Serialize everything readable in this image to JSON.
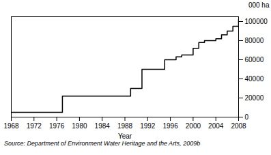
{
  "chart_data": {
    "type": "step",
    "xlabel": "Year",
    "ylabel": "000 ha",
    "caption": "Source: Department of Environment Water Heritage and the Arts,  2009b",
    "x": [
      1968,
      1969,
      1970,
      1971,
      1972,
      1973,
      1974,
      1975,
      1976,
      1977,
      1978,
      1979,
      1980,
      1981,
      1982,
      1983,
      1984,
      1985,
      1986,
      1987,
      1988,
      1989,
      1990,
      1991,
      1992,
      1993,
      1994,
      1995,
      1996,
      1997,
      1998,
      1999,
      2000,
      2001,
      2002,
      2003,
      2004,
      2005,
      2006,
      2007,
      2008
    ],
    "values": [
      5000,
      5000,
      5000,
      5000,
      5000,
      5000,
      5000,
      5000,
      5000,
      22000,
      22000,
      22000,
      22000,
      22000,
      22000,
      22000,
      22000,
      22000,
      22000,
      22000,
      22000,
      30000,
      30000,
      50000,
      50000,
      50000,
      50000,
      60000,
      60000,
      63000,
      65000,
      65000,
      72000,
      78000,
      80000,
      80000,
      82000,
      86000,
      90000,
      95000,
      102000
    ],
    "color": "#000000",
    "xlim": [
      1968,
      2008
    ],
    "xticks": [
      1968,
      1972,
      1976,
      1980,
      1984,
      1988,
      1992,
      1996,
      2000,
      2004,
      2008
    ],
    "ylim": [
      0,
      105000
    ],
    "yticks": [
      0,
      20000,
      40000,
      60000,
      80000,
      100000
    ]
  }
}
